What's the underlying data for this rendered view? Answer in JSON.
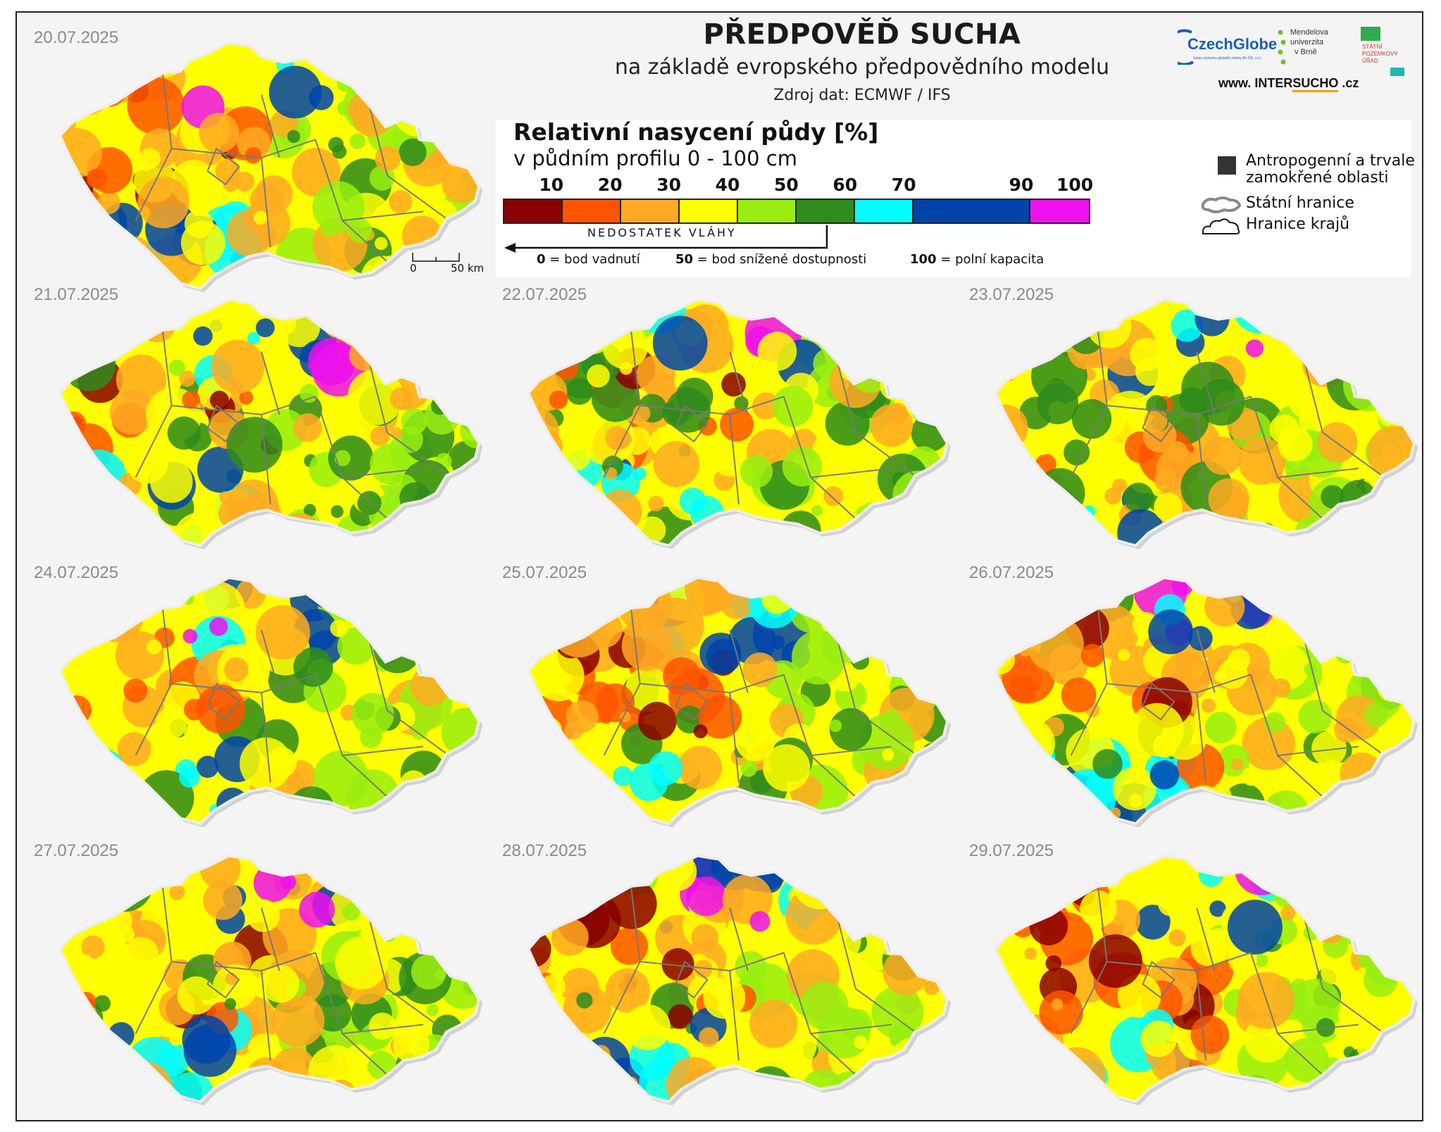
{
  "title": "PŘEDPOVĚĎ SUCHA",
  "subtitle": "na základě evropského předpovědního modelu",
  "source": "Zdroj dat: ECMWF / IFS",
  "legend": {
    "title": "Relativní nasycení půdy [%]",
    "subtitle": "v půdním profilu 0 - 100 cm",
    "ticks": [
      "10",
      "20",
      "30",
      "40",
      "50",
      "60",
      "70",
      "90",
      "100"
    ],
    "classes": [
      {
        "from": 0,
        "to": 10,
        "color": "#8b0000"
      },
      {
        "from": 10,
        "to": 20,
        "color": "#ff5500"
      },
      {
        "from": 20,
        "to": 30,
        "color": "#ffaa22"
      },
      {
        "from": 30,
        "to": 40,
        "color": "#ffff00"
      },
      {
        "from": 40,
        "to": 50,
        "color": "#99ee11"
      },
      {
        "from": 50,
        "to": 60,
        "color": "#2e8b1c"
      },
      {
        "from": 60,
        "to": 70,
        "color": "#00ffff"
      },
      {
        "from": 70,
        "to": 90,
        "color": "#0044aa"
      },
      {
        "from": 90,
        "to": 100,
        "color": "#ee11ee"
      }
    ],
    "deficit_label": "NEDOSTATEK VLÁHY",
    "def_0_num": "0",
    "def_0_text": " = bod vadnutí",
    "def_50_num": "50",
    "def_50_text": " = bod snížené dostupnosti",
    "def_100_num": "100",
    "def_100_text": " = polní kapacita",
    "wetland_line1": "Antropogenní a trvale",
    "wetland_line2": "zamokřené oblasti",
    "state_border": "Státní hranice",
    "region_border": "Hranice krajů"
  },
  "scalebar": {
    "start": "0",
    "end": "50 km"
  },
  "logos": {
    "czechglobe": "CzechGlobe",
    "czechglobe_sub": "Ústav výzkumu globální změny AV ČR, v.v.i.",
    "mendel_1": "Mendelova",
    "mendel_2": "univerzita",
    "mendel_3": "v Brně",
    "spu_1": "STÁTNÍ",
    "spu_2": "POZEMKOVÝ",
    "spu_3": "ÚŘAD",
    "website_prefix": "www. INTER",
    "website_bold": "SUCHO",
    "website_suffix": " .cz"
  },
  "maps": [
    {
      "date": "20.07.2025",
      "dryness": 0.85
    },
    {
      "date": "21.07.2025",
      "dryness": 0.45
    },
    {
      "date": "22.07.2025",
      "dryness": 0.47
    },
    {
      "date": "23.07.2025",
      "dryness": 0.5
    },
    {
      "date": "24.07.2025",
      "dryness": 0.55
    },
    {
      "date": "25.07.2025",
      "dryness": 0.55
    },
    {
      "date": "26.07.2025",
      "dryness": 0.62
    },
    {
      "date": "27.07.2025",
      "dryness": 0.68
    },
    {
      "date": "28.07.2025",
      "dryness": 0.72
    },
    {
      "date": "29.07.2025",
      "dryness": 0.76
    }
  ]
}
